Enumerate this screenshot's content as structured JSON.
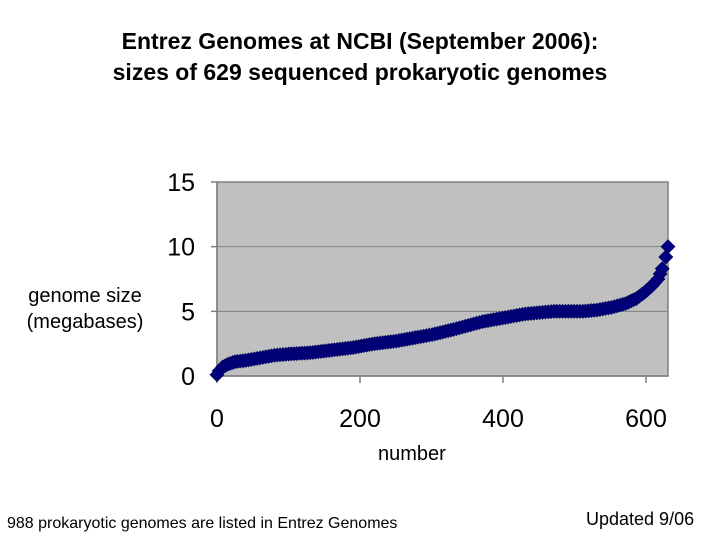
{
  "title": {
    "line1": "Entrez Genomes at NCBI (September 2006):",
    "line2": "sizes of 629 sequenced prokaryotic genomes"
  },
  "footnote": "988 prokaryotic genomes are listed in Entrez Genomes",
  "updated": "Updated 9/06",
  "chart_data": {
    "type": "scatter",
    "title": "Entrez Genomes at NCBI (September 2006): sizes of 629 sequenced prokaryotic genomes",
    "xlabel": "number",
    "ylabel": "genome size (megabases)",
    "xlim": [
      0,
      629
    ],
    "ylim": [
      0,
      15
    ],
    "xticks": [
      0,
      200,
      400,
      600
    ],
    "yticks": [
      0,
      5,
      10,
      15
    ],
    "xtick_labels": [
      "0",
      "200",
      "400",
      "600"
    ],
    "ytick_labels": [
      "0",
      "5",
      "10",
      "15"
    ],
    "grid": true,
    "plot_background": "#c0c0c0",
    "marker_color": "#000080",
    "marker": "diamond",
    "series": [
      {
        "x": [
          0,
          3,
          8,
          15,
          25,
          40,
          60,
          80,
          100,
          130,
          160,
          190,
          220,
          250,
          280,
          300,
          330,
          350,
          370,
          390,
          410,
          430,
          450,
          470,
          490,
          510,
          530,
          550,
          570,
          585,
          597,
          607,
          615,
          621,
          626,
          629
        ],
        "y": [
          0.1,
          0.4,
          0.7,
          0.9,
          1.1,
          1.2,
          1.4,
          1.6,
          1.7,
          1.8,
          2.0,
          2.2,
          2.5,
          2.7,
          3.0,
          3.2,
          3.6,
          3.9,
          4.2,
          4.4,
          4.6,
          4.8,
          4.9,
          5.0,
          5.0,
          5.0,
          5.1,
          5.3,
          5.6,
          6.0,
          6.5,
          7.0,
          7.5,
          8.3,
          9.2,
          10.0
        ]
      }
    ]
  }
}
